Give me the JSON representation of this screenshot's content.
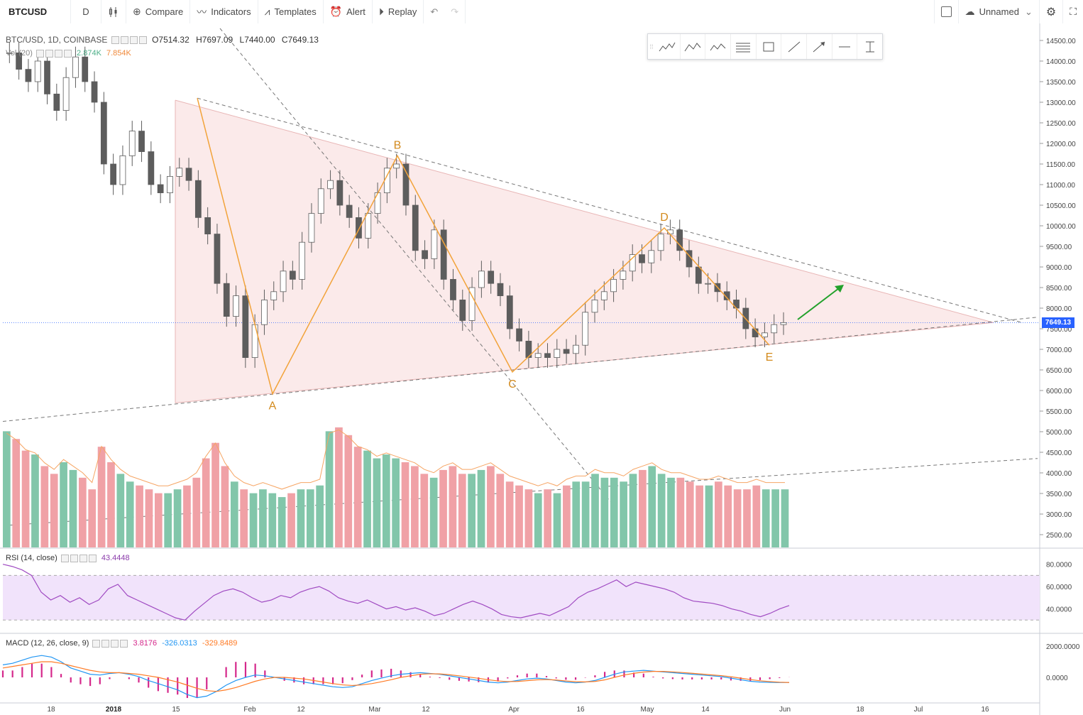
{
  "toolbar": {
    "symbol": "BTCUSD",
    "interval": "D",
    "compare": "Compare",
    "indicators": "Indicators",
    "templates": "Templates",
    "alert": "Alert",
    "replay": "Replay",
    "layout_name": "Unnamed"
  },
  "legend": {
    "main": "BTC/USD, 1D, COINBASE",
    "open": "O7514.32",
    "high": "H7697.09",
    "low": "L7440.00",
    "close": "C7649.13",
    "vol_label": "Vol (20)",
    "vol_value1": "2.874K",
    "vol_value2": "7.854K",
    "rsi_label": "RSI (14, close)",
    "rsi_value": "43.4448",
    "macd_label": "MACD (12, 26, close, 9)",
    "macd_v1": "3.8176",
    "macd_v2": "-326.0313",
    "macd_v3": "-329.8489"
  },
  "last_price": "7649.13",
  "colors": {
    "up": "#82c6aa",
    "down": "#f0a1a6",
    "body": "#5d5d5d",
    "pattern": "#f2a33a",
    "triangle_fill": "#f9e1e1",
    "rsi": "#a04bc2",
    "rsi_band": "#f1e3fb",
    "macd": "#2196f3",
    "signal": "#ff7b25",
    "hist": "#d5288b",
    "arrow": "#22a12b",
    "price_line": "#2962ff"
  },
  "chart_data": [
    {
      "type": "candlestick",
      "title": "BTC/USD, 1D, COINBASE",
      "ylim": [
        4000,
        14500
      ],
      "price_ticks": [
        "14500.00",
        "14000.00",
        "13500.00",
        "13000.00",
        "12500.00",
        "12000.00",
        "11500.00",
        "11000.00",
        "10500.00",
        "10000.00",
        "9500.00",
        "9000.00",
        "8500.00",
        "8000.00",
        "7500.00",
        "7000.00",
        "6500.00",
        "6000.00",
        "5500.00",
        "5000.00",
        "4500.00",
        "4000.00",
        "3500.00",
        "3000.00",
        "2500.00"
      ],
      "x_ticks": [
        "18",
        "2018",
        "15",
        "Feb",
        "12",
        "Mar",
        "12",
        "Apr",
        "16",
        "May",
        "14",
        "Jun",
        "18",
        "Jul",
        "16"
      ],
      "pattern_points": [
        {
          "label": "A",
          "price": 5920
        },
        {
          "label": "B",
          "price": 11700
        },
        {
          "label": "C",
          "price": 6450
        },
        {
          "label": "D",
          "price": 9950
        },
        {
          "label": "E",
          "price": 7100
        }
      ],
      "close_path": [
        14200,
        13800,
        13500,
        14000,
        13200,
        12800,
        13600,
        14100,
        13500,
        13000,
        11500,
        11000,
        11700,
        12300,
        11800,
        11000,
        10800,
        11200,
        11400,
        11100,
        10200,
        9800,
        8600,
        7800,
        8300,
        6800,
        7600,
        8200,
        8400,
        8900,
        8700,
        9600,
        10300,
        10900,
        11100,
        10500,
        10200,
        9700,
        10300,
        10800,
        11400,
        11500,
        10500,
        9400,
        9200,
        9900,
        8700,
        8200,
        7700,
        8500,
        8900,
        8600,
        8300,
        7500,
        7200,
        6800,
        6900,
        6800,
        7000,
        6900,
        7100,
        7900,
        8200,
        8400,
        8700,
        8900,
        9300,
        9100,
        9400,
        9800,
        9900,
        9400,
        9000,
        8600,
        8600,
        8400,
        8200,
        8000,
        7500,
        7300,
        7400,
        7600,
        7649
      ],
      "volume_k": [
        3000,
        2800,
        2500,
        2400,
        2100,
        1900,
        2200,
        2000,
        1800,
        1500,
        2600,
        2200,
        1900,
        1700,
        1600,
        1500,
        1400,
        1400,
        1500,
        1600,
        1800,
        2300,
        2700,
        2100,
        1700,
        1500,
        1400,
        1500,
        1400,
        1300,
        1400,
        1500,
        1500,
        1600,
        3000,
        3100,
        2900,
        2600,
        2500,
        2300,
        2400,
        2300,
        2200,
        2100,
        1900,
        1800,
        2000,
        2100,
        1900,
        1900,
        2000,
        2100,
        1900,
        1700,
        1600,
        1500,
        1400,
        1500,
        1400,
        1600,
        1700,
        1700,
        1900,
        1800,
        1800,
        1700,
        1900,
        2000,
        2100,
        1900,
        1800,
        1800,
        1700,
        1600,
        1600,
        1700,
        1600,
        1500,
        1500,
        1600,
        1500,
        1500,
        1500
      ]
    },
    {
      "type": "line",
      "title": "RSI (14, close)",
      "ylim": [
        20,
        90
      ],
      "y_ticks": [
        "80.0000",
        "60.0000",
        "40.0000"
      ],
      "band": [
        30,
        70
      ],
      "values": [
        80,
        78,
        75,
        70,
        55,
        48,
        52,
        46,
        50,
        44,
        48,
        58,
        62,
        52,
        48,
        44,
        40,
        36,
        32,
        30,
        38,
        45,
        52,
        56,
        58,
        55,
        50,
        46,
        48,
        52,
        50,
        55,
        58,
        60,
        56,
        50,
        47,
        45,
        48,
        44,
        40,
        42,
        39,
        41,
        38,
        34,
        36,
        40,
        44,
        47,
        44,
        40,
        35,
        33,
        32,
        34,
        36,
        34,
        38,
        42,
        50,
        55,
        58,
        62,
        66,
        60,
        64,
        62,
        60,
        58,
        55,
        50,
        47,
        46,
        45,
        43,
        40,
        38,
        35,
        33,
        36,
        40,
        43
      ]
    },
    {
      "type": "macd",
      "title": "MACD (12, 26, close, 9)",
      "ylim": [
        -1500,
        2500
      ],
      "y_ticks": [
        "2000.0000",
        "0.0000"
      ],
      "macd": [
        800,
        900,
        1100,
        1300,
        1400,
        1300,
        1000,
        600,
        400,
        200,
        150,
        250,
        300,
        200,
        50,
        -200,
        -400,
        -600,
        -800,
        -1100,
        -1300,
        -1200,
        -900,
        -500,
        -200,
        0,
        150,
        100,
        0,
        -100,
        -200,
        -300,
        -400,
        -500,
        -600,
        -650,
        -600,
        -400,
        -200,
        -50,
        100,
        200,
        250,
        300,
        250,
        200,
        100,
        0,
        -100,
        -200,
        -300,
        -350,
        -300,
        -200,
        -100,
        -50,
        -100,
        -200,
        -300,
        -350,
        -300,
        -200,
        0,
        200,
        350,
        400,
        450,
        400,
        350,
        300,
        250,
        200,
        150,
        100,
        50,
        -50,
        -150,
        -250,
        -300,
        -320,
        -330,
        -326
      ],
      "signal": [
        600,
        700,
        800,
        900,
        1000,
        1000,
        900,
        750,
        600,
        450,
        350,
        300,
        300,
        250,
        200,
        100,
        0,
        -150,
        -300,
        -500,
        -700,
        -850,
        -900,
        -800,
        -650,
        -450,
        -250,
        -100,
        0,
        0,
        -50,
        -100,
        -200,
        -300,
        -400,
        -480,
        -520,
        -480,
        -400,
        -280,
        -150,
        0,
        100,
        200,
        230,
        220,
        170,
        100,
        20,
        -60,
        -150,
        -230,
        -270,
        -260,
        -210,
        -160,
        -140,
        -170,
        -230,
        -280,
        -290,
        -260,
        -160,
        0,
        150,
        260,
        340,
        380,
        380,
        350,
        310,
        260,
        210,
        160,
        110,
        40,
        -50,
        -140,
        -220,
        -270,
        -310,
        -329
      ]
    }
  ]
}
